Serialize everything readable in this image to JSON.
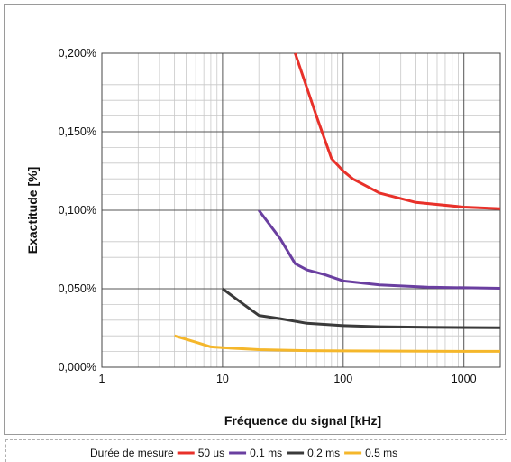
{
  "chart_data": {
    "type": "line",
    "title": "",
    "xlabel": "Fréquence du signal [kHz]",
    "ylabel": "Exactitude [%]",
    "x_scale": "log",
    "xlim": [
      1,
      2000
    ],
    "ylim": [
      0,
      0.2
    ],
    "x_ticks": [
      1,
      10,
      100,
      1000
    ],
    "x_tick_labels": [
      "1",
      "10",
      "100",
      "1000"
    ],
    "y_ticks": [
      0,
      0.05,
      0.1,
      0.15,
      0.2
    ],
    "y_tick_labels": [
      "0,000%",
      "0,050%",
      "0,100%",
      "0,150%",
      "0,200%"
    ],
    "grid": true,
    "legend_title": "Durée de mesure",
    "legend_position": "bottom",
    "series": [
      {
        "name": "50 us",
        "color": "#e8312a",
        "x": [
          40,
          50,
          60,
          80,
          100,
          120,
          200,
          400,
          1000,
          2000
        ],
        "y": [
          0.2,
          0.178,
          0.16,
          0.133,
          0.125,
          0.12,
          0.111,
          0.105,
          0.102,
          0.101
        ]
      },
      {
        "name": "0.1 ms",
        "color": "#6a3fa0",
        "x": [
          20,
          30,
          40,
          50,
          70,
          100,
          200,
          500,
          2000
        ],
        "y": [
          0.1,
          0.082,
          0.066,
          0.062,
          0.059,
          0.055,
          0.0525,
          0.051,
          0.0503
        ]
      },
      {
        "name": "0.2 ms",
        "color": "#3a3a3a",
        "x": [
          10,
          15,
          20,
          30,
          50,
          100,
          200,
          500,
          2000
        ],
        "y": [
          0.05,
          0.04,
          0.033,
          0.031,
          0.028,
          0.0265,
          0.0258,
          0.0254,
          0.0252
        ]
      },
      {
        "name": "0.5 ms",
        "color": "#f5b72b",
        "x": [
          4,
          6,
          8,
          10,
          20,
          50,
          100,
          500,
          2000
        ],
        "y": [
          0.02,
          0.016,
          0.013,
          0.0125,
          0.0112,
          0.0106,
          0.0104,
          0.0102,
          0.0101
        ]
      }
    ]
  }
}
